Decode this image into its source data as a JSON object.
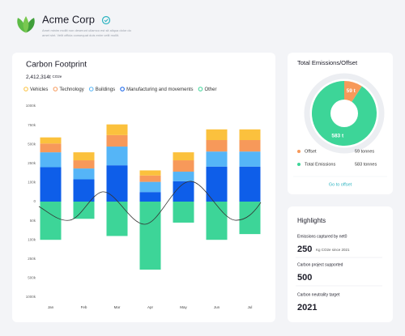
{
  "header": {
    "title": "Acme Corp",
    "subtitle": [
      "Amet minim mollit non deserunt ullamco est sit aliqua dolor do",
      "amet sint. Velit officia consequat duis enim velit mollit."
    ]
  },
  "chart_data": [
    {
      "type": "stacked_bar",
      "title": "Carbon Footprint",
      "total": "2,412,314t",
      "total_unit": "CO2e",
      "categories": [
        "Jan",
        "Feb",
        "Mar",
        "Apr",
        "May",
        "Jun",
        "Jul"
      ],
      "series": [
        {
          "name": "Vehicles",
          "color": "#fbc13d",
          "values": [
            80000,
            105000,
            140000,
            40000,
            105000,
            140000,
            140000
          ]
        },
        {
          "name": "Technology",
          "color": "#f7995a",
          "values": [
            115000,
            80000,
            150000,
            50000,
            105000,
            150000,
            150000
          ]
        },
        {
          "name": "Buildings",
          "color": "#55b5f7",
          "values": [
            175000,
            85000,
            235000,
            55000,
            75000,
            180000,
            180000
          ]
        },
        {
          "name": "Manufacturing and movements",
          "color": "#0e5ee9",
          "values": [
            220000,
            125000,
            235000,
            50000,
            110000,
            225000,
            225000
          ]
        },
        {
          "name": "Other",
          "color": "#3dd598",
          "values": [
            -100000,
            -45000,
            -90000,
            -390000,
            -55000,
            -100000,
            -85000
          ]
        }
      ],
      "ylim": [
        -1000000,
        1000000
      ],
      "yticks": [
        {
          "value": 1000000,
          "label": "1000k"
        },
        {
          "value": 750000,
          "label": "750k"
        },
        {
          "value": 500000,
          "label": "500k"
        },
        {
          "value": 250000,
          "label": "250k"
        },
        {
          "value": 100000,
          "label": "100k"
        },
        0,
        {
          "value": -50000,
          "label": "50k"
        },
        {
          "value": -100000,
          "label": "100k"
        },
        {
          "value": -250000,
          "label": "250k"
        },
        {
          "value": -500000,
          "label": "500k"
        },
        {
          "value": -1000000,
          "label": "1000k"
        }
      ]
    },
    {
      "type": "donut",
      "title": "Total Emissions/Offset",
      "categories": [
        "Offset",
        "Total Emissions"
      ],
      "values": [
        59,
        583
      ],
      "value_labels": [
        "59 t",
        "583 t"
      ],
      "legend_value_labels": [
        "59 tonnes",
        "583 tonnes"
      ],
      "colors": [
        "#f7995a",
        "#3dd598"
      ],
      "link": "Go to offset"
    }
  ],
  "highlights": {
    "title": "Highlights",
    "items": [
      {
        "label": "Emissions captured by net0",
        "value": 250,
        "unit": "Kg CO2e since 2021"
      },
      {
        "label": "Carbon project supported",
        "value": 500
      },
      {
        "label": "Carbon neutrality target",
        "value": 2021
      }
    ]
  }
}
